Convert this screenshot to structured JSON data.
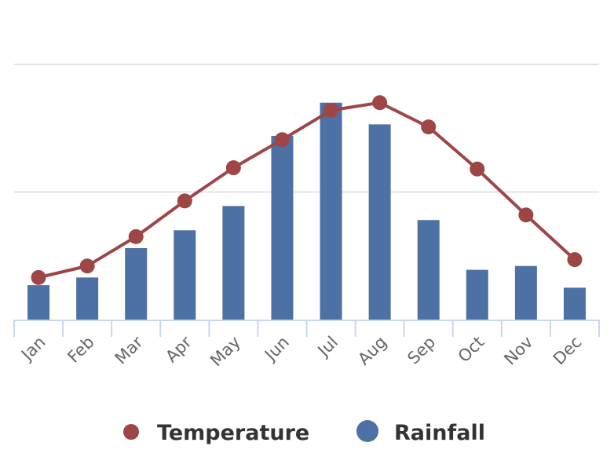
{
  "chart_data": {
    "type": "bar+line",
    "categories": [
      "Jan",
      "Feb",
      "Mar",
      "Apr",
      "May",
      "Jun",
      "Jul",
      "Aug",
      "Sep",
      "Oct",
      "Nov",
      "Dec"
    ],
    "series": [
      {
        "name": "Temperature",
        "type": "line",
        "color": "#9e4646",
        "values": [
          0.33,
          0.42,
          0.65,
          0.93,
          1.19,
          1.41,
          1.64,
          1.7,
          1.51,
          1.18,
          0.82,
          0.47
        ]
      },
      {
        "name": "Rainfall",
        "type": "bar",
        "color": "#4d70a5",
        "values": [
          0.27,
          0.33,
          0.56,
          0.7,
          0.89,
          1.44,
          1.7,
          1.53,
          0.78,
          0.39,
          0.42,
          0.25
        ]
      }
    ],
    "ylim": [
      0,
      2
    ],
    "grid": true,
    "legend": "bottom",
    "title": "",
    "xlabel": "",
    "ylabel": ""
  }
}
